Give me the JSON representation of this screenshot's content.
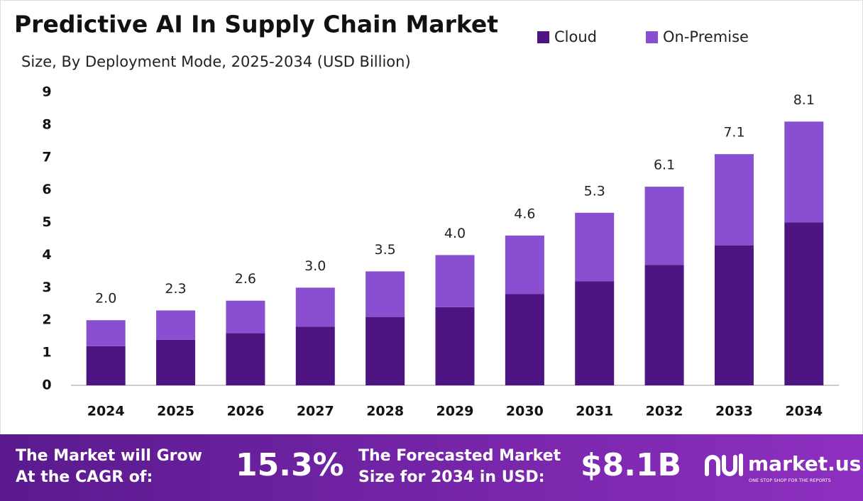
{
  "chart_data": {
    "type": "stacked_bar",
    "title": "Predictive AI In Supply Chain Market",
    "subtitle": "Size, By Deployment Mode, 2025-2034 (USD Billion)",
    "categories": [
      "2024",
      "2025",
      "2026",
      "2027",
      "2028",
      "2029",
      "2030",
      "2031",
      "2032",
      "2033",
      "2034"
    ],
    "series": [
      {
        "name": "Cloud",
        "color": "#4e1582",
        "values": [
          1.2,
          1.4,
          1.6,
          1.8,
          2.1,
          2.4,
          2.8,
          3.2,
          3.7,
          4.3,
          5.0
        ]
      },
      {
        "name": "On-Premise",
        "color": "#8a4fd0",
        "values": [
          0.8,
          0.9,
          1.0,
          1.2,
          1.4,
          1.6,
          1.8,
          2.1,
          2.4,
          2.8,
          3.1
        ]
      }
    ],
    "totals": [
      2.0,
      2.3,
      2.6,
      3.0,
      3.5,
      4.0,
      4.6,
      5.3,
      6.1,
      7.1,
      8.1
    ],
    "total_labels": [
      "2.0",
      "2.3",
      "2.6",
      "3.0",
      "3.5",
      "4.0",
      "4.6",
      "5.3",
      "6.1",
      "7.1",
      "8.1"
    ],
    "ylim": [
      0,
      9
    ],
    "yticks": [
      0,
      1,
      2,
      3,
      4,
      5,
      6,
      7,
      8,
      9
    ],
    "grid": false,
    "legend": "top-right"
  },
  "footer": {
    "cagr_text": [
      "The Market will Grow",
      "At the CAGR of:"
    ],
    "cagr": "15.3%",
    "forecast_text": [
      "The Forecasted Market",
      "Size for 2034 in USD:"
    ],
    "forecast": "$8.1B",
    "logo": "market.us",
    "tagline": "ONE STOP SHOP FOR THE REPORTS"
  }
}
